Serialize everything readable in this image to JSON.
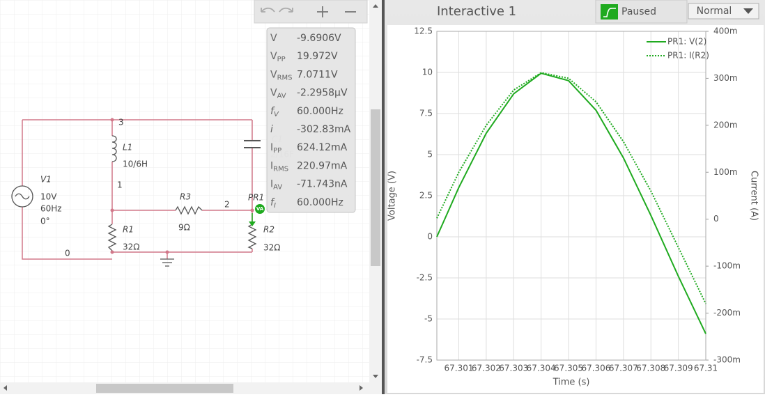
{
  "toolbar": {
    "title": "Interactive 1",
    "status": "Paused",
    "mode": "Normal"
  },
  "schematic": {
    "nodes": [
      "3",
      "1",
      "2",
      "0"
    ],
    "components": [
      {
        "name": "V1",
        "values": [
          "10V",
          "60Hz",
          "0°"
        ]
      },
      {
        "name": "L1",
        "values": [
          "10/6H"
        ]
      },
      {
        "name": "R3",
        "values": [
          "9Ω"
        ]
      },
      {
        "name": "R1",
        "values": [
          "32Ω"
        ]
      },
      {
        "name": "R2",
        "values": [
          "32Ω"
        ]
      },
      {
        "name": "C1",
        "values": [
          "2/16F"
        ]
      }
    ],
    "probe_name": "PR1",
    "probe_badge": "VA"
  },
  "probe": {
    "rows": [
      {
        "symbol": "V",
        "value": "-9.6906V"
      },
      {
        "symbol": "V",
        "sub": "PP",
        "value": "19.972V"
      },
      {
        "symbol": "V",
        "sub": "RMS",
        "value": "7.0711V"
      },
      {
        "symbol": "V",
        "sub": "AV",
        "value": "-2.2958µV"
      },
      {
        "symbol": "f",
        "sub": "V",
        "value": "60.000Hz"
      },
      {
        "symbol": "i",
        "value": "-302.83mA"
      },
      {
        "symbol": "I",
        "sub": "PP",
        "value": "624.12mA"
      },
      {
        "symbol": "I",
        "sub": "RMS",
        "value": "220.97mA"
      },
      {
        "symbol": "I",
        "sub": "AV",
        "value": "-71.743nA"
      },
      {
        "symbol": "f",
        "sub": "I",
        "value": "60.000Hz"
      }
    ]
  },
  "chart_data": {
    "type": "line",
    "x": [
      67.3002,
      67.301,
      67.302,
      67.303,
      67.304,
      67.305,
      67.306,
      67.307,
      67.308,
      67.309,
      67.31
    ],
    "series": [
      {
        "name": "PR1: V(2)",
        "color": "#1faa1f",
        "style": "solid",
        "values": [
          0,
          3.0,
          6.3,
          8.7,
          9.95,
          9.5,
          7.7,
          4.8,
          1.3,
          -2.4,
          -5.9
        ]
      },
      {
        "name": "PR1: I(R2)",
        "color": "#1faa1f",
        "style": "dotted",
        "axis": "y2",
        "values": [
          0.002,
          0.1,
          0.2,
          0.275,
          0.312,
          0.3,
          0.25,
          0.165,
          0.06,
          -0.06,
          -0.18
        ]
      }
    ],
    "xlim": [
      67.3002,
      67.31
    ],
    "xticks": [
      67.301,
      67.302,
      67.303,
      67.304,
      67.305,
      67.306,
      67.307,
      67.308,
      67.309,
      67.31
    ],
    "ylim": [
      -7.5,
      12.5
    ],
    "yticks": [
      -7.5,
      -5,
      -2.5,
      0,
      2.5,
      5,
      7.5,
      10,
      12.5
    ],
    "y2lim": [
      -0.3,
      0.4
    ],
    "y2ticks": [
      {
        "value": -0.3,
        "label": "-300m"
      },
      {
        "value": -0.2,
        "label": "-200m"
      },
      {
        "value": -0.1,
        "label": "-100m"
      },
      0,
      {
        "value": 0.1,
        "label": "100m"
      },
      {
        "value": 0.2,
        "label": "200m"
      },
      {
        "value": 0.3,
        "label": "300m"
      },
      {
        "value": 0.4,
        "label": "400m"
      }
    ],
    "xlabel": "Time (s)",
    "ylabel": "Voltage (V)",
    "y2label": "Current (A)",
    "grid": true,
    "legend": "upper right"
  }
}
